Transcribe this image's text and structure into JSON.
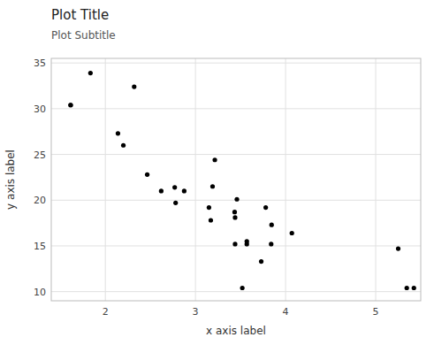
{
  "chart_data": {
    "type": "scatter",
    "title": "Plot Title",
    "subtitle": "Plot Subtitle",
    "xlabel": "x axis label",
    "ylabel": "y axis label",
    "x": [
      1.615,
      1.615,
      1.835,
      2.14,
      2.2,
      2.32,
      2.465,
      2.62,
      2.77,
      2.78,
      2.875,
      3.15,
      3.17,
      3.19,
      3.215,
      3.435,
      3.44,
      3.44,
      3.46,
      3.52,
      3.57,
      3.57,
      3.73,
      3.78,
      3.84,
      3.845,
      4.07,
      5.25,
      5.345,
      5.424
    ],
    "values": [
      30.4,
      30.4,
      33.9,
      27.3,
      26.0,
      32.4,
      22.8,
      21.0,
      21.4,
      19.7,
      21.0,
      19.2,
      17.8,
      21.5,
      24.4,
      18.7,
      18.1,
      15.2,
      20.1,
      10.4,
      15.5,
      15.2,
      13.3,
      19.2,
      15.2,
      17.3,
      16.4,
      14.7,
      10.4,
      10.4
    ],
    "color": "#000000",
    "xlim": [
      1.4,
      5.5
    ],
    "ylim": [
      9.0,
      35.5
    ],
    "xticks": [
      2,
      3,
      4,
      5
    ],
    "yticks": [
      10,
      15,
      20,
      25,
      30,
      35
    ],
    "grid": true
  }
}
